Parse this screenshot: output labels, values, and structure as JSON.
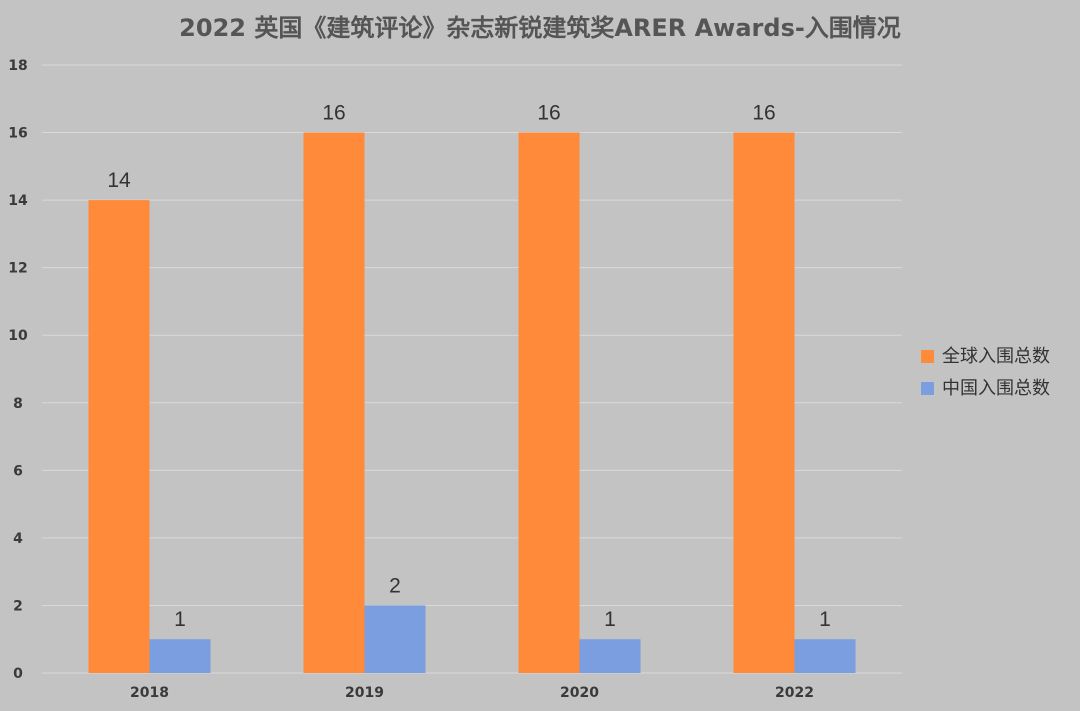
{
  "chart_data": {
    "type": "bar",
    "title": "2022 英国《建筑评论》杂志新锐建筑奖ARER Awards-入围情况",
    "categories": [
      "2018",
      "2019",
      "2020",
      "2022"
    ],
    "series": [
      {
        "name": "全球入围总数",
        "values": [
          14,
          16,
          16,
          16
        ],
        "color": "#ff8a3a"
      },
      {
        "name": "中国入围总数",
        "values": [
          1,
          2,
          1,
          1
        ],
        "color": "#7a9ee0"
      }
    ],
    "ylim": [
      0,
      18
    ],
    "yticks": [
      0,
      2,
      4,
      6,
      8,
      10,
      12,
      14,
      16,
      18
    ],
    "grid": true,
    "legend_position": "right",
    "data_labels": true,
    "background_color": "#c3c3c3"
  }
}
